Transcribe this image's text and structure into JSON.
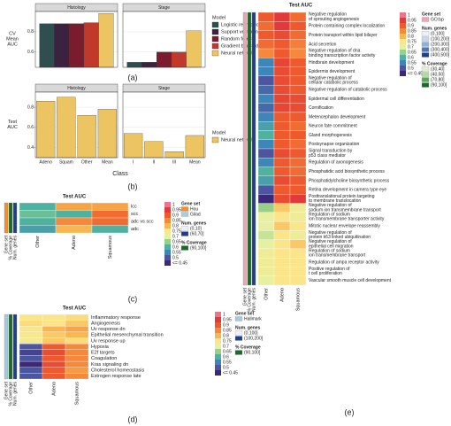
{
  "chart_data": [
    {
      "type": "bar",
      "panel_label": "(a)",
      "ylabel": "CV\nMean\nAUC",
      "facets": [
        "Histology",
        "Stage"
      ],
      "series": [
        {
          "name": "Logistic regression",
          "color": "#2f4f4f",
          "values": [
            0.88,
            0.5
          ]
        },
        {
          "name": "Support vector machines",
          "color": "#3d2240",
          "values": [
            0.88,
            0.5
          ]
        },
        {
          "name": "Random forest",
          "color": "#7a1c2e",
          "values": [
            0.88,
            0.6
          ]
        },
        {
          "name": "Gradient boosted trees",
          "color": "#c0392b",
          "values": [
            0.89,
            0.6
          ]
        },
        {
          "name": "Neural network",
          "color": "#ecc462",
          "values": [
            0.98,
            0.81
          ]
        }
      ],
      "legend_title": "Model",
      "ylim": [
        0.45,
        1.0
      ],
      "yticks": [
        0.6,
        0.8
      ]
    },
    {
      "type": "bar",
      "panel_label": "(b)",
      "ylabel": "Test\nAUC",
      "xlabel": "Class",
      "facets": [
        "Histology",
        "Stage"
      ],
      "categories": [
        [
          "Adeno",
          "Squam",
          "Other",
          "Mean"
        ],
        [
          "I",
          "II",
          "III",
          "Mean"
        ]
      ],
      "series": [
        {
          "name": "Neural network",
          "color": "#ecc462",
          "values": [
            [
              0.86,
              0.9,
              0.72,
              0.78
            ],
            [
              0.54,
              0.46,
              0.36,
              0.52
            ]
          ]
        }
      ],
      "legend_title": "Model",
      "ylim": [
        0.3,
        0.95
      ],
      "yticks": [
        0.4,
        0.6,
        0.8
      ]
    },
    {
      "type": "heatmap",
      "panel_label": "(c)",
      "title": "Test AUC",
      "rows": [
        "lcc",
        "scc",
        "adc vs scc",
        "adc"
      ],
      "columns": [
        "Other",
        "Adeno",
        "Squamous"
      ],
      "values": [
        [
          0.6,
          0.82,
          0.82
        ],
        [
          0.62,
          0.6,
          0.88
        ],
        [
          0.6,
          0.85,
          0.88
        ],
        [
          0.58,
          0.8,
          0.6
        ]
      ],
      "annotation_labels": [
        "Gene set",
        "% Coverage",
        "Num. genes"
      ],
      "colorbar": {
        "ticks": [
          1,
          0.95,
          0.9,
          0.85,
          0.8,
          0.75,
          0.7,
          0.65,
          0.6,
          0.55,
          0.5,
          {
            "value": 0.45,
            "label": "<= 0.45"
          }
        ],
        "colors": [
          "#e8768c",
          "#e03a3a",
          "#ee5a2e",
          "#f5883a",
          "#f8b650",
          "#fbe58a",
          "#e6f0a0",
          "#98d08a",
          "#4fb2a0",
          "#3f86b8",
          "#4b55a0",
          "#3b2878"
        ]
      },
      "legends": [
        {
          "title": "Gene set",
          "items": [
            {
              "label": "Hou",
              "color": "#f28e2b"
            },
            {
              "label": "Gilad",
              "color": "#a6cee3"
            }
          ]
        },
        {
          "title": "Num. genes",
          "items": [
            {
              "label": "(0,10]",
              "color": "#eef0f8"
            },
            {
              "label": "(60,70]",
              "color": "#1f3f8a"
            }
          ]
        },
        {
          "title": "% Coverage",
          "items": [
            {
              "label": "(90,100]",
              "color": "#1a6b2a"
            }
          ]
        }
      ]
    },
    {
      "type": "heatmap",
      "panel_label": "(d)",
      "title": "Test AUC",
      "rows": [
        "Inflammatory response",
        "Angiogenesis",
        "Uv response dn",
        "Epithelial mesenchymal transition",
        "Uv response up",
        "Hypoxia",
        "E2f targets",
        "Coagulation",
        "Kras signaling dn",
        "Cholesterol homeostasis",
        "Estrogen response late"
      ],
      "columns": [
        "Other",
        "Adeno",
        "Squamous"
      ],
      "values": [
        [
          0.75,
          0.75,
          0.76
        ],
        [
          0.76,
          0.75,
          0.78
        ],
        [
          0.75,
          0.8,
          0.82
        ],
        [
          0.74,
          0.78,
          0.8
        ],
        [
          0.73,
          0.78,
          0.76
        ],
        [
          0.5,
          0.9,
          0.85
        ],
        [
          0.48,
          0.92,
          0.85
        ],
        [
          0.5,
          0.9,
          0.85
        ],
        [
          0.45,
          0.92,
          0.85
        ],
        [
          0.5,
          0.9,
          0.83
        ],
        [
          0.5,
          0.9,
          0.85
        ]
      ],
      "annotation_labels": [
        "Gene set",
        "% Coverage",
        "Num. genes"
      ],
      "colorbar": {
        "ticks": [
          1,
          0.95,
          0.9,
          0.85,
          0.8,
          0.75,
          0.7,
          0.65,
          0.6,
          0.55,
          0.5,
          {
            "value": 0.45,
            "label": "<= 0.45"
          }
        ],
        "colors": [
          "#e8768c",
          "#e03a3a",
          "#ee5a2e",
          "#f5883a",
          "#f8b650",
          "#fbe58a",
          "#e6f0a0",
          "#98d08a",
          "#4fb2a0",
          "#3f86b8",
          "#4b55a0",
          "#3b2878"
        ]
      },
      "legends": [
        {
          "title": "Gene set",
          "items": [
            {
              "label": "Hallmark",
              "color": "#a6c8e0"
            }
          ]
        },
        {
          "title": "Num. genes",
          "items": [
            {
              "label": "(0,100]",
              "color": "#eef0f8"
            },
            {
              "label": "(100,200]",
              "color": "#1f3f8a"
            }
          ]
        },
        {
          "title": "% Coverage",
          "items": [
            {
              "label": "(90,100]",
              "color": "#1a6b2a"
            }
          ]
        }
      ]
    },
    {
      "type": "heatmap",
      "panel_label": "(e)",
      "title": "Test AUC",
      "rows": [
        "Negative regulation\nof sprouting angiogenesis",
        "Protein containing complex localization",
        "Protein transport within lipid bilayer",
        "Acid secretion",
        "Negative regulation of dna\nbinding transcription factor activity",
        "Hindbrain development",
        "Epidermis development",
        "Negative regulation of\ncellular catabolic process",
        "Negative regulation of catabolic process",
        "Epidermal cell differentiation",
        "Cornification",
        "Metencephalon development",
        "Neuron fate commitment",
        "Gland morphogenesis",
        "Postsynapse organization",
        "Signal transduction by\np53 class mediator",
        "Regulation of axonogenesis",
        "Phosphatidic acid biosynthetic process",
        "Phosphatidylcholine biosynthetic process",
        "Retina development in camera type eye",
        "Posttranslational protein targeting\nto membrane translocation",
        "Negative regulation of\nsodium ion transmembrane transport",
        "Regulation of sodium\nion transmembrane transporter activity",
        "Mitotic nuclear envelope reassembly",
        "Negative regulation of\nprotein k63 linked ubiquitination",
        "Negative regulation of\nepithelial cell migration",
        "Regulation of sodium\nion transmembrane transport",
        "Regulation of ampa receptor activity",
        "Positive regulation of\nt cell proliferation",
        "Vascular smooth muscle cell development"
      ],
      "columns": [
        "Other",
        "Adeno",
        "Squamous"
      ],
      "values": [
        [
          0.9,
          0.95,
          0.88
        ],
        [
          0.88,
          0.95,
          0.9
        ],
        [
          0.9,
          0.92,
          0.88
        ],
        [
          0.88,
          0.9,
          0.86
        ],
        [
          0.85,
          0.9,
          0.85
        ],
        [
          0.55,
          0.93,
          0.9
        ],
        [
          0.55,
          0.92,
          0.9
        ],
        [
          0.5,
          0.92,
          0.9
        ],
        [
          0.52,
          0.92,
          0.9
        ],
        [
          0.55,
          0.93,
          0.92
        ],
        [
          0.52,
          0.93,
          0.92
        ],
        [
          0.55,
          0.9,
          0.9
        ],
        [
          0.58,
          0.9,
          0.88
        ],
        [
          0.6,
          0.9,
          0.9
        ],
        [
          0.55,
          0.9,
          0.88
        ],
        [
          0.5,
          0.92,
          0.9
        ],
        [
          0.55,
          0.9,
          0.88
        ],
        [
          0.6,
          0.9,
          0.88
        ],
        [
          0.58,
          0.92,
          0.9
        ],
        [
          0.5,
          0.9,
          0.9
        ],
        [
          0.45,
          0.92,
          0.95
        ],
        [
          0.65,
          0.78,
          0.72
        ],
        [
          0.7,
          0.75,
          0.72
        ],
        [
          0.7,
          0.78,
          0.75
        ],
        [
          0.68,
          0.75,
          0.72
        ],
        [
          0.7,
          0.75,
          0.78
        ],
        [
          0.72,
          0.75,
          0.75
        ],
        [
          0.72,
          0.75,
          0.75
        ],
        [
          0.72,
          0.75,
          0.75
        ],
        [
          0.7,
          0.75,
          0.75
        ]
      ],
      "annotation_labels": [
        "Gene set",
        "% Coverage",
        "Num. genes"
      ],
      "colorbar": {
        "ticks": [
          1,
          0.95,
          0.9,
          0.85,
          0.8,
          0.75,
          0.7,
          0.65,
          0.6,
          0.55,
          0.5,
          {
            "value": 0.45,
            "label": "<= 0.45"
          }
        ],
        "colors": [
          "#e8768c",
          "#e03a3a",
          "#ee5a2e",
          "#f5883a",
          "#f8b650",
          "#fbe58a",
          "#e6f0a0",
          "#98d08a",
          "#4fb2a0",
          "#3f86b8",
          "#4b55a0",
          "#3b2878"
        ]
      },
      "legends": [
        {
          "title": "Gene set",
          "items": [
            {
              "label": "GO:bp",
              "color": "#eaa6b6"
            }
          ]
        },
        {
          "title": "Num. genes",
          "items": [
            {
              "label": "(0,100]",
              "color": "#eef0f8"
            },
            {
              "label": "(100,200]",
              "color": "#c6d8ee"
            },
            {
              "label": "(200,300]",
              "color": "#8fb0dc"
            },
            {
              "label": "(300,400]",
              "color": "#4a78b8"
            },
            {
              "label": "(400,500]",
              "color": "#1f3f8a"
            }
          ]
        },
        {
          "title": "% Coverage",
          "items": [
            {
              "label": "(30,40]",
              "color": "#dff0d0"
            },
            {
              "label": "(40,50]",
              "color": "#b0dca0"
            },
            {
              "label": "(70,80]",
              "color": "#5aa850"
            },
            {
              "label": "(90,100]",
              "color": "#1a6b2a"
            }
          ]
        }
      ]
    }
  ]
}
